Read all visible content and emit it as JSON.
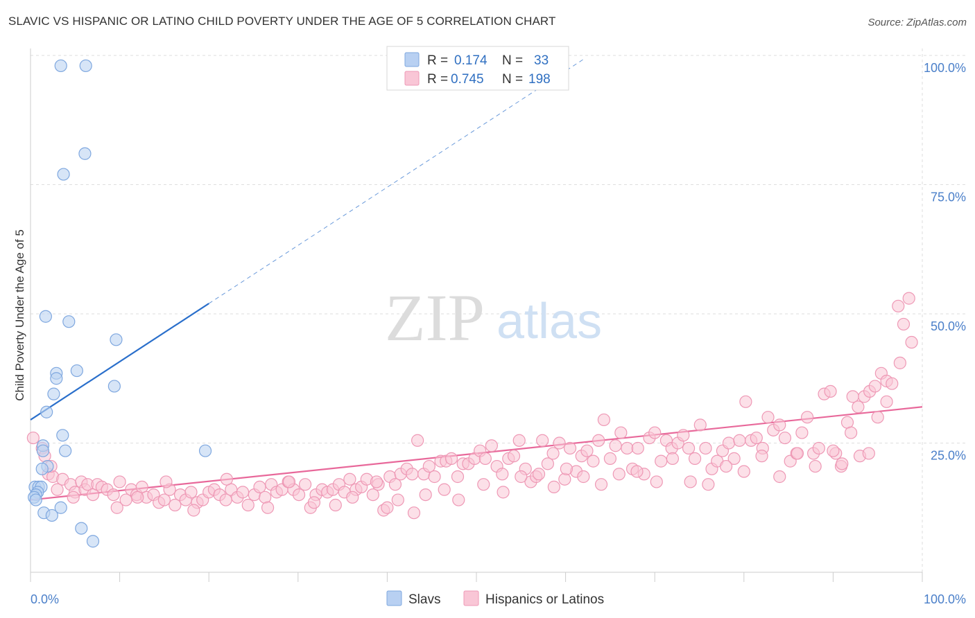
{
  "title": "SLAVIC VS HISPANIC OR LATINO CHILD POVERTY UNDER THE AGE OF 5 CORRELATION CHART",
  "source": "Source: ZipAtlas.com",
  "watermark": {
    "zip": "ZIP",
    "atlas": "atlas"
  },
  "legend": {
    "r_label": "R =",
    "n_label": "N =",
    "rows": [
      {
        "r": "0.174",
        "n": "33",
        "color": "#a9c6ef"
      },
      {
        "r": "0.745",
        "n": "198",
        "color": "#f7b8cb"
      }
    ]
  },
  "bottom_legend": [
    "Slavs",
    "Hispanics or Latinos"
  ],
  "colors": {
    "slavs_fill": "#bcd3f2",
    "slavs_stroke": "#7ea7df",
    "slavs_line": "#2a6fcb",
    "hisp_fill": "#f9c6d6",
    "hisp_stroke": "#ee98b5",
    "hisp_line": "#e8689a",
    "grid": "#dddddd"
  },
  "chart_data": {
    "type": "scatter",
    "title": "SLAVIC VS HISPANIC OR LATINO CHILD POVERTY UNDER THE AGE OF 5 CORRELATION CHART",
    "xlabel": "",
    "ylabel": "Child Poverty Under the Age of 5",
    "xlim": [
      0,
      100
    ],
    "ylim": [
      0,
      100
    ],
    "x_tick_labels": [
      "0.0%",
      "100.0%"
    ],
    "y_tick_labels": [
      "100.0%",
      "75.0%",
      "50.0%",
      "25.0%"
    ],
    "y_ticks": [
      100,
      75,
      50,
      25
    ],
    "grid": true,
    "legend_position": "top-center",
    "series": [
      {
        "name": "Slavs",
        "r": 0.174,
        "n": 33,
        "trend": {
          "x0": 0,
          "y0": 29.5,
          "x1": 20,
          "y1": 52,
          "dashed_to_x": 62
        },
        "points": [
          [
            3.4,
            98
          ],
          [
            6.2,
            98
          ],
          [
            6.1,
            81
          ],
          [
            3.7,
            77
          ],
          [
            1.7,
            49.5
          ],
          [
            4.3,
            48.5
          ],
          [
            9.6,
            45
          ],
          [
            2.9,
            38.5
          ],
          [
            5.2,
            39
          ],
          [
            2.9,
            37.5
          ],
          [
            9.4,
            36
          ],
          [
            2.6,
            34.5
          ],
          [
            1.8,
            31
          ],
          [
            3.6,
            26.5
          ],
          [
            1.4,
            24.5
          ],
          [
            3.9,
            23.5
          ],
          [
            19.6,
            23.5
          ],
          [
            1.4,
            23.5
          ],
          [
            1.9,
            20.5
          ],
          [
            1.3,
            20
          ],
          [
            0.5,
            16.5
          ],
          [
            0.9,
            16.5
          ],
          [
            1.2,
            16.5
          ],
          [
            0.8,
            15.5
          ],
          [
            0.6,
            15
          ],
          [
            0.4,
            14.5
          ],
          [
            0.6,
            14
          ],
          [
            1.5,
            11.5
          ],
          [
            2.4,
            11
          ],
          [
            3.4,
            12.5
          ],
          [
            5.7,
            8.5
          ],
          [
            7.0,
            6
          ]
        ]
      },
      {
        "name": "Hispanics or Latinos",
        "r": 0.745,
        "n": 198,
        "trend": {
          "x0": 0,
          "y0": 14,
          "x1": 100,
          "y1": 32
        },
        "points": [
          [
            0.3,
            26
          ],
          [
            1.3,
            24
          ],
          [
            1.6,
            22.5
          ],
          [
            2.0,
            19
          ],
          [
            2.5,
            18.5
          ],
          [
            3.0,
            16
          ],
          [
            3.6,
            18
          ],
          [
            4.5,
            17
          ],
          [
            5.0,
            15.5
          ],
          [
            5.7,
            17.5
          ],
          [
            6.1,
            16
          ],
          [
            6.4,
            17
          ],
          [
            7.0,
            15
          ],
          [
            7.5,
            17
          ],
          [
            8.0,
            16.5
          ],
          [
            8.6,
            16
          ],
          [
            9.3,
            15
          ],
          [
            10.0,
            17.5
          ],
          [
            10.7,
            14
          ],
          [
            11.3,
            16
          ],
          [
            11.9,
            15
          ],
          [
            12.5,
            16.5
          ],
          [
            13.0,
            14.5
          ],
          [
            13.8,
            15
          ],
          [
            14.4,
            13.5
          ],
          [
            15.0,
            14
          ],
          [
            15.6,
            16
          ],
          [
            16.2,
            13
          ],
          [
            16.8,
            15
          ],
          [
            17.4,
            14
          ],
          [
            18.0,
            15.5
          ],
          [
            18.7,
            13.5
          ],
          [
            19.3,
            14
          ],
          [
            20.0,
            15.5
          ],
          [
            20.6,
            16
          ],
          [
            21.2,
            15
          ],
          [
            21.9,
            14
          ],
          [
            22.5,
            16
          ],
          [
            23.2,
            14.5
          ],
          [
            23.8,
            15.5
          ],
          [
            24.4,
            13
          ],
          [
            25.1,
            15
          ],
          [
            25.7,
            16.5
          ],
          [
            26.3,
            14.5
          ],
          [
            27.0,
            17
          ],
          [
            27.6,
            15.5
          ],
          [
            28.2,
            16
          ],
          [
            28.9,
            17.5
          ],
          [
            29.5,
            16
          ],
          [
            30.1,
            15
          ],
          [
            30.8,
            17
          ],
          [
            31.4,
            12.5
          ],
          [
            32.0,
            15
          ],
          [
            32.7,
            16
          ],
          [
            33.3,
            15.5
          ],
          [
            33.9,
            16
          ],
          [
            34.6,
            17
          ],
          [
            35.2,
            15.5
          ],
          [
            35.8,
            18
          ],
          [
            36.5,
            16
          ],
          [
            37.1,
            16.5
          ],
          [
            37.7,
            18
          ],
          [
            38.4,
            15
          ],
          [
            39.0,
            17
          ],
          [
            39.6,
            12
          ],
          [
            40.3,
            18.5
          ],
          [
            40.9,
            17
          ],
          [
            41.5,
            19
          ],
          [
            42.2,
            20
          ],
          [
            42.8,
            19
          ],
          [
            43.4,
            25.5
          ],
          [
            44.1,
            19
          ],
          [
            44.7,
            20.5
          ],
          [
            45.3,
            18.5
          ],
          [
            46.0,
            21.5
          ],
          [
            46.6,
            21.5
          ],
          [
            47.2,
            22
          ],
          [
            47.9,
            18.5
          ],
          [
            48.5,
            21
          ],
          [
            49.1,
            21
          ],
          [
            49.8,
            22
          ],
          [
            50.4,
            23.5
          ],
          [
            51.0,
            22
          ],
          [
            51.7,
            24.5
          ],
          [
            52.3,
            20.5
          ],
          [
            52.9,
            19
          ],
          [
            53.6,
            22
          ],
          [
            54.2,
            22.5
          ],
          [
            54.8,
            25.5
          ],
          [
            55.5,
            20
          ],
          [
            56.1,
            17.5
          ],
          [
            56.7,
            18.5
          ],
          [
            57.4,
            25.5
          ],
          [
            58.0,
            21
          ],
          [
            58.6,
            23
          ],
          [
            59.3,
            25
          ],
          [
            59.9,
            18
          ],
          [
            60.5,
            24
          ],
          [
            61.2,
            19.5
          ],
          [
            61.8,
            22.5
          ],
          [
            62.4,
            23.5
          ],
          [
            63.1,
            21.5
          ],
          [
            63.7,
            25.5
          ],
          [
            64.3,
            29.5
          ],
          [
            65.0,
            22
          ],
          [
            65.6,
            24.5
          ],
          [
            66.2,
            27
          ],
          [
            66.9,
            24
          ],
          [
            67.5,
            20
          ],
          [
            68.1,
            24
          ],
          [
            68.8,
            19
          ],
          [
            69.4,
            26
          ],
          [
            70.0,
            27
          ],
          [
            70.7,
            21.5
          ],
          [
            71.3,
            25.5
          ],
          [
            71.9,
            24
          ],
          [
            72.6,
            25
          ],
          [
            73.2,
            26.5
          ],
          [
            73.8,
            24
          ],
          [
            74.5,
            22
          ],
          [
            75.1,
            28.5
          ],
          [
            75.7,
            24
          ],
          [
            76.4,
            20
          ],
          [
            77.0,
            21.5
          ],
          [
            77.6,
            23.5
          ],
          [
            78.3,
            25
          ],
          [
            78.9,
            22
          ],
          [
            79.5,
            25.5
          ],
          [
            80.2,
            33
          ],
          [
            80.8,
            25.5
          ],
          [
            81.4,
            26
          ],
          [
            82.1,
            24
          ],
          [
            82.7,
            30
          ],
          [
            83.3,
            27.5
          ],
          [
            84.0,
            28.5
          ],
          [
            84.6,
            26
          ],
          [
            85.2,
            21.5
          ],
          [
            85.9,
            23
          ],
          [
            86.5,
            27
          ],
          [
            87.1,
            30
          ],
          [
            87.8,
            23
          ],
          [
            88.4,
            24
          ],
          [
            89.0,
            34.5
          ],
          [
            89.7,
            35
          ],
          [
            90.3,
            23
          ],
          [
            90.9,
            20.5
          ],
          [
            91.6,
            29
          ],
          [
            92.2,
            34
          ],
          [
            92.8,
            32
          ],
          [
            93.5,
            34
          ],
          [
            94.1,
            35
          ],
          [
            94.7,
            36
          ],
          [
            95.4,
            38.5
          ],
          [
            96.0,
            37
          ],
          [
            96.6,
            36.5
          ],
          [
            97.3,
            51.5
          ],
          [
            97.9,
            48
          ],
          [
            98.5,
            53
          ],
          [
            2.3,
            20.5
          ],
          [
            4.8,
            14.5
          ],
          [
            9.7,
            12.5
          ],
          [
            12.0,
            14.5
          ],
          [
            15.2,
            17.5
          ],
          [
            18.3,
            12
          ],
          [
            22.0,
            18
          ],
          [
            26.6,
            12.5
          ],
          [
            29.0,
            17.5
          ],
          [
            31.8,
            13.5
          ],
          [
            34.2,
            13
          ],
          [
            36.1,
            14.5
          ],
          [
            38.8,
            17.5
          ],
          [
            40.0,
            12.5
          ],
          [
            41.2,
            14
          ],
          [
            43.0,
            11.5
          ],
          [
            44.3,
            15
          ],
          [
            46.4,
            16
          ],
          [
            48.0,
            14
          ],
          [
            50.8,
            17
          ],
          [
            53.0,
            15.5
          ],
          [
            55.0,
            18.5
          ],
          [
            57.0,
            19
          ],
          [
            58.7,
            16.5
          ],
          [
            60.1,
            20
          ],
          [
            62.0,
            18.5
          ],
          [
            64.0,
            17
          ],
          [
            66.0,
            19
          ],
          [
            68.0,
            19.5
          ],
          [
            70.2,
            17.5
          ],
          [
            72.0,
            22
          ],
          [
            74.0,
            17.5
          ],
          [
            76.0,
            17
          ],
          [
            78.0,
            20.5
          ],
          [
            80.0,
            19.5
          ],
          [
            82.0,
            22.5
          ],
          [
            84.0,
            18.5
          ],
          [
            86.0,
            23
          ],
          [
            88.0,
            20.5
          ],
          [
            90.0,
            23.5
          ],
          [
            91.0,
            21
          ],
          [
            92.0,
            27
          ],
          [
            93.0,
            22.5
          ],
          [
            94.0,
            23
          ],
          [
            95.0,
            30
          ],
          [
            96.0,
            33
          ],
          [
            97.5,
            40.5
          ],
          [
            98.8,
            44.5
          ]
        ]
      }
    ]
  }
}
